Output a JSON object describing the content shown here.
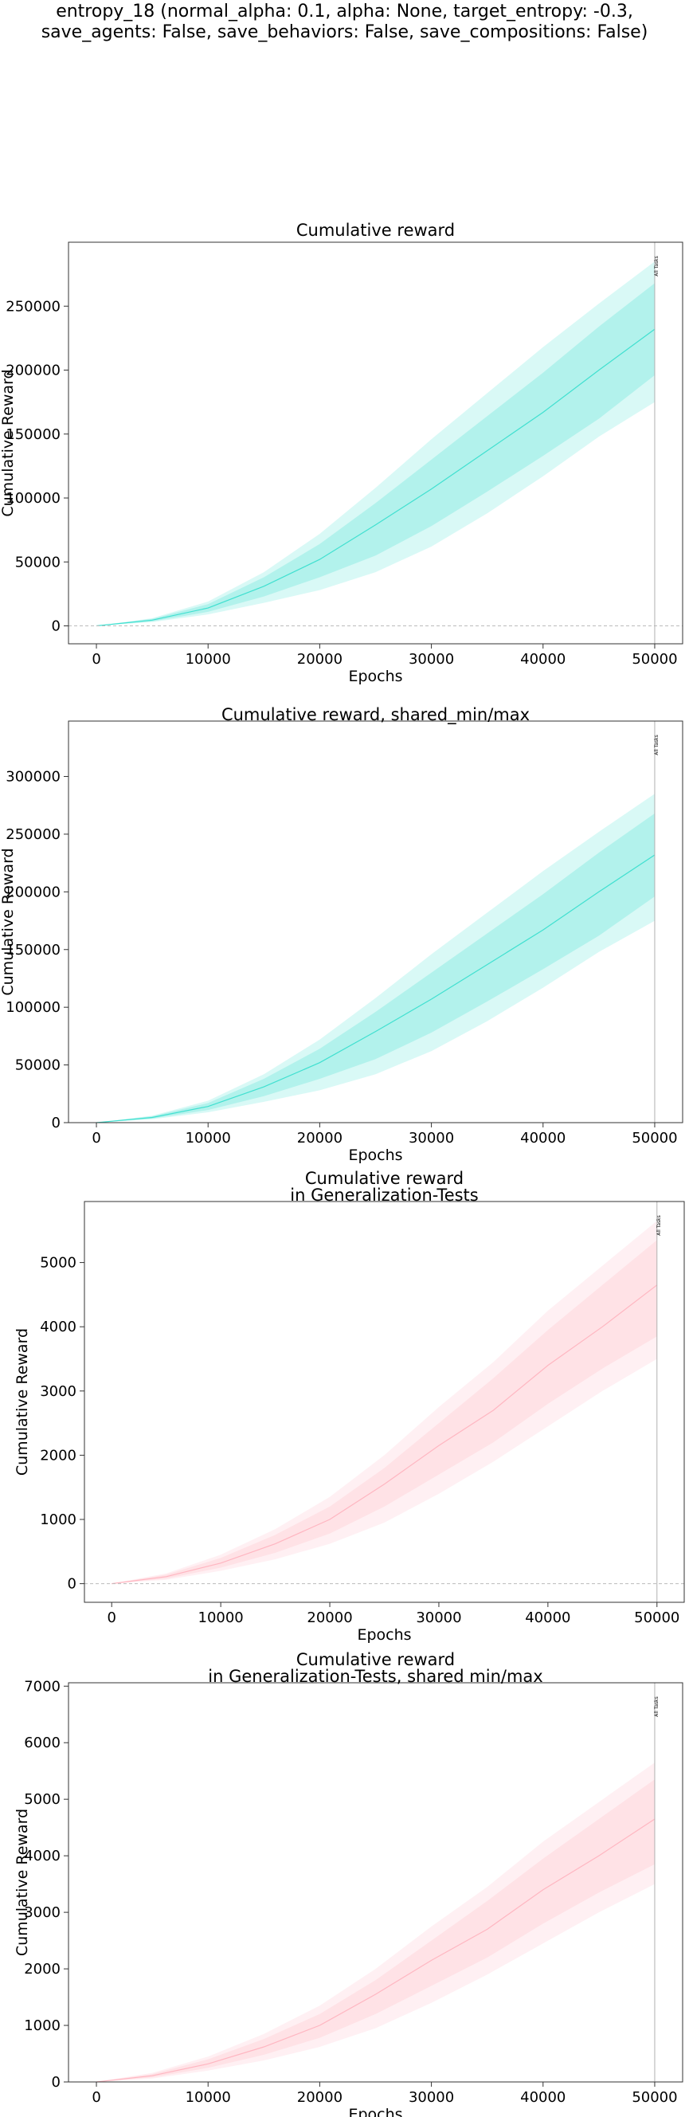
{
  "suptitle": {
    "line1": "entropy_18 (normal_alpha: 0.1, alpha: None, target_entropy: -0.3,",
    "line2": "save_agents: False, save_behaviors: False, save_compositions: False)"
  },
  "chart_data": [
    {
      "type": "line",
      "title": [
        "Cumulative reward"
      ],
      "xlabel": "Epochs",
      "ylabel": "Cumulative Reward",
      "xlim": [
        -2500,
        52500
      ],
      "ylim": [
        -14000,
        300000
      ],
      "xticks": [
        0,
        10000,
        20000,
        30000,
        40000,
        50000
      ],
      "yticks": [
        0,
        50000,
        100000,
        150000,
        200000,
        250000
      ],
      "zero_line": true,
      "marker": {
        "x": 50000,
        "label": "All Tasks"
      },
      "color": "#40e0d0",
      "series": [
        {
          "x": [
            0,
            5000,
            10000,
            15000,
            20000,
            25000,
            30000,
            35000,
            40000,
            45000,
            50000
          ],
          "mean": [
            0,
            4500,
            14000,
            31000,
            52000,
            79000,
            107000,
            137000,
            167000,
            200000,
            232000
          ],
          "std_low": [
            0,
            3500,
            11000,
            23000,
            38000,
            55000,
            78000,
            105000,
            133000,
            162000,
            196000
          ],
          "std_high": [
            0,
            5500,
            17000,
            38000,
            64000,
            96000,
            130000,
            164000,
            198000,
            234000,
            268000
          ],
          "min": [
            0,
            3000,
            9000,
            18000,
            28000,
            42000,
            62000,
            88000,
            117000,
            148000,
            175000
          ],
          "max": [
            0,
            6000,
            19000,
            42000,
            72000,
            108000,
            146000,
            182000,
            218000,
            252000,
            285000
          ]
        }
      ]
    },
    {
      "type": "line",
      "title": [
        "Cumulative reward, shared_min/max"
      ],
      "xlabel": "Epochs",
      "ylabel": "Cumulative Reward",
      "xlim": [
        -2500,
        52500
      ],
      "ylim": [
        0,
        348000
      ],
      "xticks": [
        0,
        10000,
        20000,
        30000,
        40000,
        50000
      ],
      "yticks": [
        0,
        50000,
        100000,
        150000,
        200000,
        250000,
        300000
      ],
      "zero_line": false,
      "marker": {
        "x": 50000,
        "label": "All Tasks"
      },
      "color": "#40e0d0",
      "series": [
        {
          "x": [
            0,
            5000,
            10000,
            15000,
            20000,
            25000,
            30000,
            35000,
            40000,
            45000,
            50000
          ],
          "mean": [
            0,
            4500,
            14000,
            31000,
            52000,
            79000,
            107000,
            137000,
            167000,
            200000,
            232000
          ],
          "std_low": [
            0,
            3500,
            11000,
            23000,
            38000,
            55000,
            78000,
            105000,
            133000,
            162000,
            196000
          ],
          "std_high": [
            0,
            5500,
            17000,
            38000,
            64000,
            96000,
            130000,
            164000,
            198000,
            234000,
            268000
          ],
          "min": [
            0,
            3000,
            9000,
            18000,
            28000,
            42000,
            62000,
            88000,
            117000,
            148000,
            175000
          ],
          "max": [
            0,
            6000,
            19000,
            42000,
            72000,
            108000,
            146000,
            182000,
            218000,
            252000,
            285000
          ]
        }
      ]
    },
    {
      "type": "line",
      "title": [
        "Cumulative reward",
        "in Generalization-Tests"
      ],
      "xlabel": "Epochs",
      "ylabel": "Cumulative Reward",
      "xlim": [
        -2500,
        52500
      ],
      "ylim": [
        -290,
        5950
      ],
      "xticks": [
        0,
        10000,
        20000,
        30000,
        40000,
        50000
      ],
      "yticks": [
        0,
        1000,
        2000,
        3000,
        4000,
        5000
      ],
      "zero_line": true,
      "marker": {
        "x": 50000,
        "label": "All Tasks"
      },
      "color": "#ffb6c1",
      "series": [
        {
          "x": [
            0,
            5000,
            10000,
            15000,
            20000,
            25000,
            30000,
            35000,
            40000,
            45000,
            50000
          ],
          "mean": [
            0,
            110,
            320,
            620,
            1000,
            1550,
            2150,
            2700,
            3400,
            4000,
            4650
          ],
          "std_low": [
            0,
            80,
            250,
            480,
            780,
            1200,
            1700,
            2200,
            2800,
            3350,
            3850
          ],
          "std_high": [
            0,
            140,
            400,
            760,
            1200,
            1800,
            2500,
            3200,
            3950,
            4650,
            5350
          ],
          "min": [
            0,
            60,
            200,
            380,
            620,
            950,
            1400,
            1900,
            2450,
            3000,
            3500
          ],
          "max": [
            0,
            160,
            450,
            850,
            1350,
            2000,
            2750,
            3450,
            4250,
            4950,
            5650
          ]
        }
      ]
    },
    {
      "type": "line",
      "title": [
        "Cumulative reward",
        "in Generalization-Tests, shared min/max"
      ],
      "xlabel": "Epochs",
      "ylabel": "Cumulative Reward",
      "xlim": [
        -2500,
        52500
      ],
      "ylim": [
        0,
        7060
      ],
      "xticks": [
        0,
        10000,
        20000,
        30000,
        40000,
        50000
      ],
      "yticks": [
        0,
        1000,
        2000,
        3000,
        4000,
        5000,
        6000,
        7000
      ],
      "zero_line": false,
      "marker": {
        "x": 50000,
        "label": "All Tasks"
      },
      "color": "#ffb6c1",
      "series": [
        {
          "x": [
            0,
            5000,
            10000,
            15000,
            20000,
            25000,
            30000,
            35000,
            40000,
            45000,
            50000
          ],
          "mean": [
            0,
            110,
            320,
            620,
            1000,
            1550,
            2150,
            2700,
            3400,
            4000,
            4650
          ],
          "std_low": [
            0,
            80,
            250,
            480,
            780,
            1200,
            1700,
            2200,
            2800,
            3350,
            3850
          ],
          "std_high": [
            0,
            140,
            400,
            760,
            1200,
            1800,
            2500,
            3200,
            3950,
            4650,
            5350
          ],
          "min": [
            0,
            60,
            200,
            380,
            620,
            950,
            1400,
            1900,
            2450,
            3000,
            3500
          ],
          "max": [
            0,
            160,
            450,
            850,
            1350,
            2000,
            2750,
            3450,
            4250,
            4950,
            5650
          ]
        }
      ]
    }
  ]
}
